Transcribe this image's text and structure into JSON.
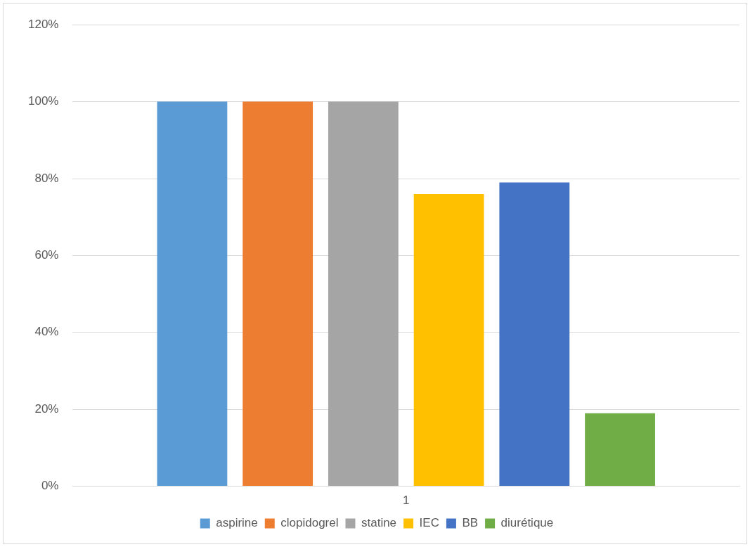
{
  "chart_data": {
    "type": "bar",
    "categories": [
      "1"
    ],
    "series": [
      {
        "name": "aspirine",
        "color": "#5b9bd5",
        "values": [
          100
        ]
      },
      {
        "name": "clopidogrel",
        "color": "#ed7d31",
        "values": [
          100
        ]
      },
      {
        "name": "statine",
        "color": "#a5a5a5",
        "values": [
          100
        ]
      },
      {
        "name": "IEC",
        "color": "#ffc000",
        "values": [
          76
        ]
      },
      {
        "name": "BB",
        "color": "#4472c4",
        "values": [
          79
        ]
      },
      {
        "name": "diurétique",
        "color": "#70ad47",
        "values": [
          19
        ]
      }
    ],
    "ylim": [
      0,
      120
    ],
    "yticks": [
      {
        "value": 0,
        "label": "0%"
      },
      {
        "value": 20,
        "label": "20%"
      },
      {
        "value": 40,
        "label": "40%"
      },
      {
        "value": 60,
        "label": "60%"
      },
      {
        "value": 80,
        "label": "80%"
      },
      {
        "value": 100,
        "label": "100%"
      },
      {
        "value": 120,
        "label": "120%"
      }
    ],
    "grid": "y",
    "legend": "bottom"
  }
}
